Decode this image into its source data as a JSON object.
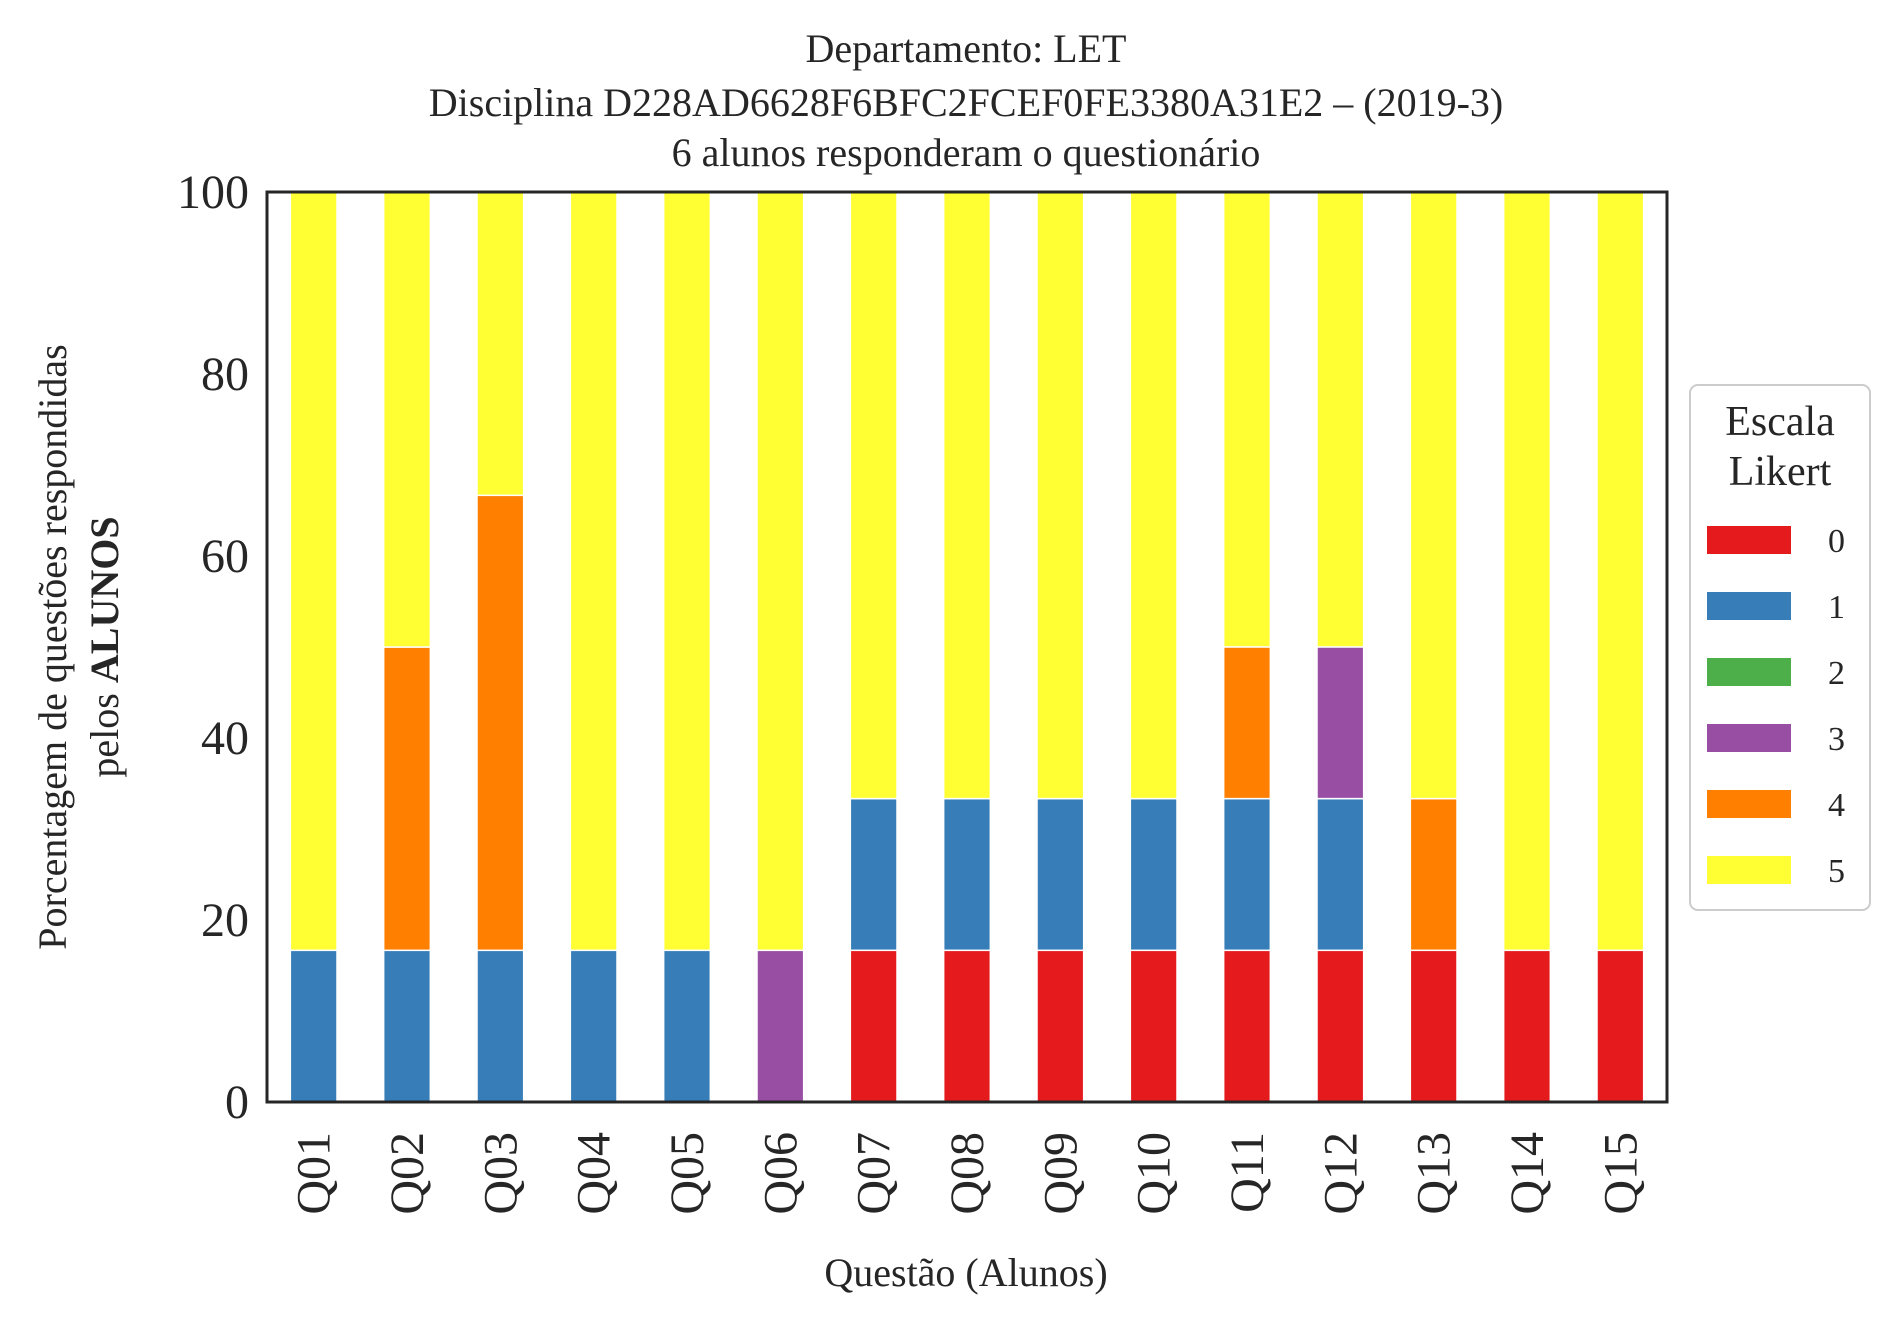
{
  "chart_data": {
    "type": "bar",
    "stacked": true,
    "title_lines": [
      "Departamento: LET",
      "Disciplina D228AD6628F6BFC2FCEF0FE3380A31E2 – (2019-3)",
      "6 alunos responderam o questionário"
    ],
    "xlabel": "Questão (Alunos)",
    "ylabel_lines": [
      "Porcentagem de questões respondidas",
      "pelos ",
      "ALUNOS"
    ],
    "ylim": [
      0,
      100
    ],
    "yticks": [
      0,
      20,
      40,
      60,
      80,
      100
    ],
    "categories": [
      "Q01",
      "Q02",
      "Q03",
      "Q04",
      "Q05",
      "Q06",
      "Q07",
      "Q08",
      "Q09",
      "Q10",
      "Q11",
      "Q12",
      "Q13",
      "Q14",
      "Q15"
    ],
    "grid": false,
    "legend": {
      "title_lines": [
        "Escala",
        "Likert"
      ],
      "placement": "outside-right"
    },
    "series": [
      {
        "name": "0",
        "color": "#e41a1c",
        "values": [
          0,
          0,
          0,
          0,
          0,
          0,
          16.67,
          16.67,
          16.67,
          16.67,
          16.67,
          16.67,
          16.67,
          16.67,
          16.67
        ]
      },
      {
        "name": "1",
        "color": "#377eb8",
        "values": [
          16.67,
          16.67,
          16.67,
          16.67,
          16.67,
          0,
          16.67,
          16.67,
          16.67,
          16.67,
          16.67,
          16.67,
          0,
          0,
          0
        ]
      },
      {
        "name": "2",
        "color": "#4daf4a",
        "values": [
          0,
          0,
          0,
          0,
          0,
          0,
          0,
          0,
          0,
          0,
          0,
          0,
          0,
          0,
          0
        ]
      },
      {
        "name": "3",
        "color": "#984ea3",
        "values": [
          0,
          0,
          0,
          0,
          0,
          16.67,
          0,
          0,
          0,
          0,
          0,
          16.67,
          0,
          0,
          0
        ]
      },
      {
        "name": "4",
        "color": "#ff7f00",
        "values": [
          0,
          33.33,
          50,
          0,
          0,
          0,
          0,
          0,
          0,
          0,
          16.67,
          0,
          16.67,
          0,
          0
        ]
      },
      {
        "name": "5",
        "color": "#ffff33",
        "values": [
          83.33,
          50,
          33.33,
          83.33,
          83.33,
          83.33,
          66.67,
          66.67,
          66.67,
          66.67,
          50,
          50,
          66.67,
          83.33,
          83.33
        ]
      }
    ]
  }
}
